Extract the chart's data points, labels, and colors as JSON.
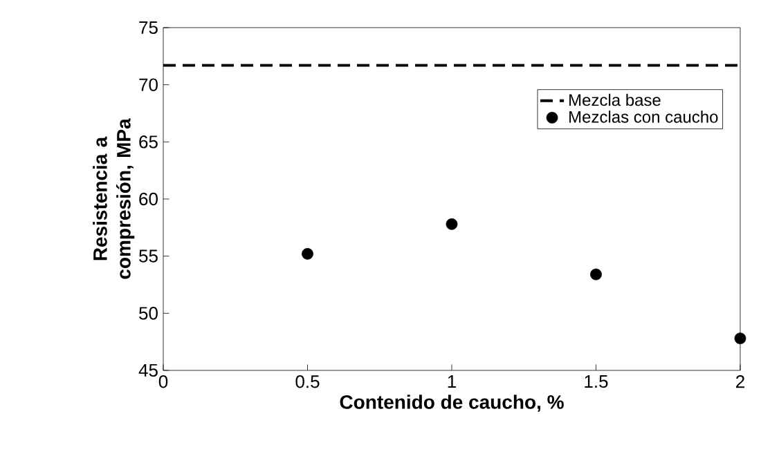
{
  "chart_data": {
    "type": "scatter",
    "xlabel": "Contenido de caucho, %",
    "ylabel": "Resistencia a compresión, MPa",
    "xlim": [
      0,
      2
    ],
    "xticks": [
      0,
      0.5,
      1,
      1.5,
      2
    ],
    "ylim": [
      45,
      75
    ],
    "yticks": [
      45,
      50,
      55,
      60,
      65,
      70,
      75
    ],
    "legend": "top right",
    "grid": false,
    "series": [
      {
        "name": "Mezcla base",
        "type": "line",
        "line_style": "dashed",
        "marker": "none",
        "color": "#000000",
        "x": [
          0,
          2
        ],
        "values": [
          71.7,
          71.7
        ]
      },
      {
        "name": "Mezclas con caucho",
        "marker": "circle",
        "color": "#000000",
        "x": [
          0.5,
          1,
          1.5,
          2
        ],
        "values": [
          55.2,
          57.8,
          53.4,
          47.8
        ]
      }
    ]
  }
}
